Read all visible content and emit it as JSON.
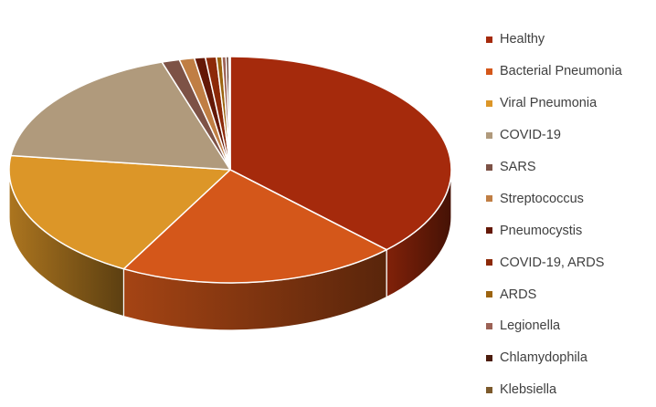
{
  "chart_data": {
    "type": "pie",
    "style": "3d",
    "legend_position": "right",
    "categories": [
      "Healthy",
      "Bacterial Pneumonia",
      "Viral Pneumonia",
      "COVID-19",
      "SARS",
      "Streptococcus",
      "Pneumocystis",
      "COVID-19, ARDS",
      "ARDS",
      "Legionella",
      "Chlamydophila",
      "Klebsiella"
    ],
    "values": [
      37.5,
      20.5,
      19.0,
      18.0,
      1.3,
      1.1,
      0.8,
      0.8,
      0.4,
      0.3,
      0.2,
      0.1
    ],
    "colors": [
      "#a52a0c",
      "#d4571a",
      "#dc9628",
      "#b09a7c",
      "#7d5246",
      "#c07e44",
      "#641806",
      "#8c2908",
      "#9c6410",
      "#9c6256",
      "#4c1c0c",
      "#7c5a2c"
    ]
  }
}
